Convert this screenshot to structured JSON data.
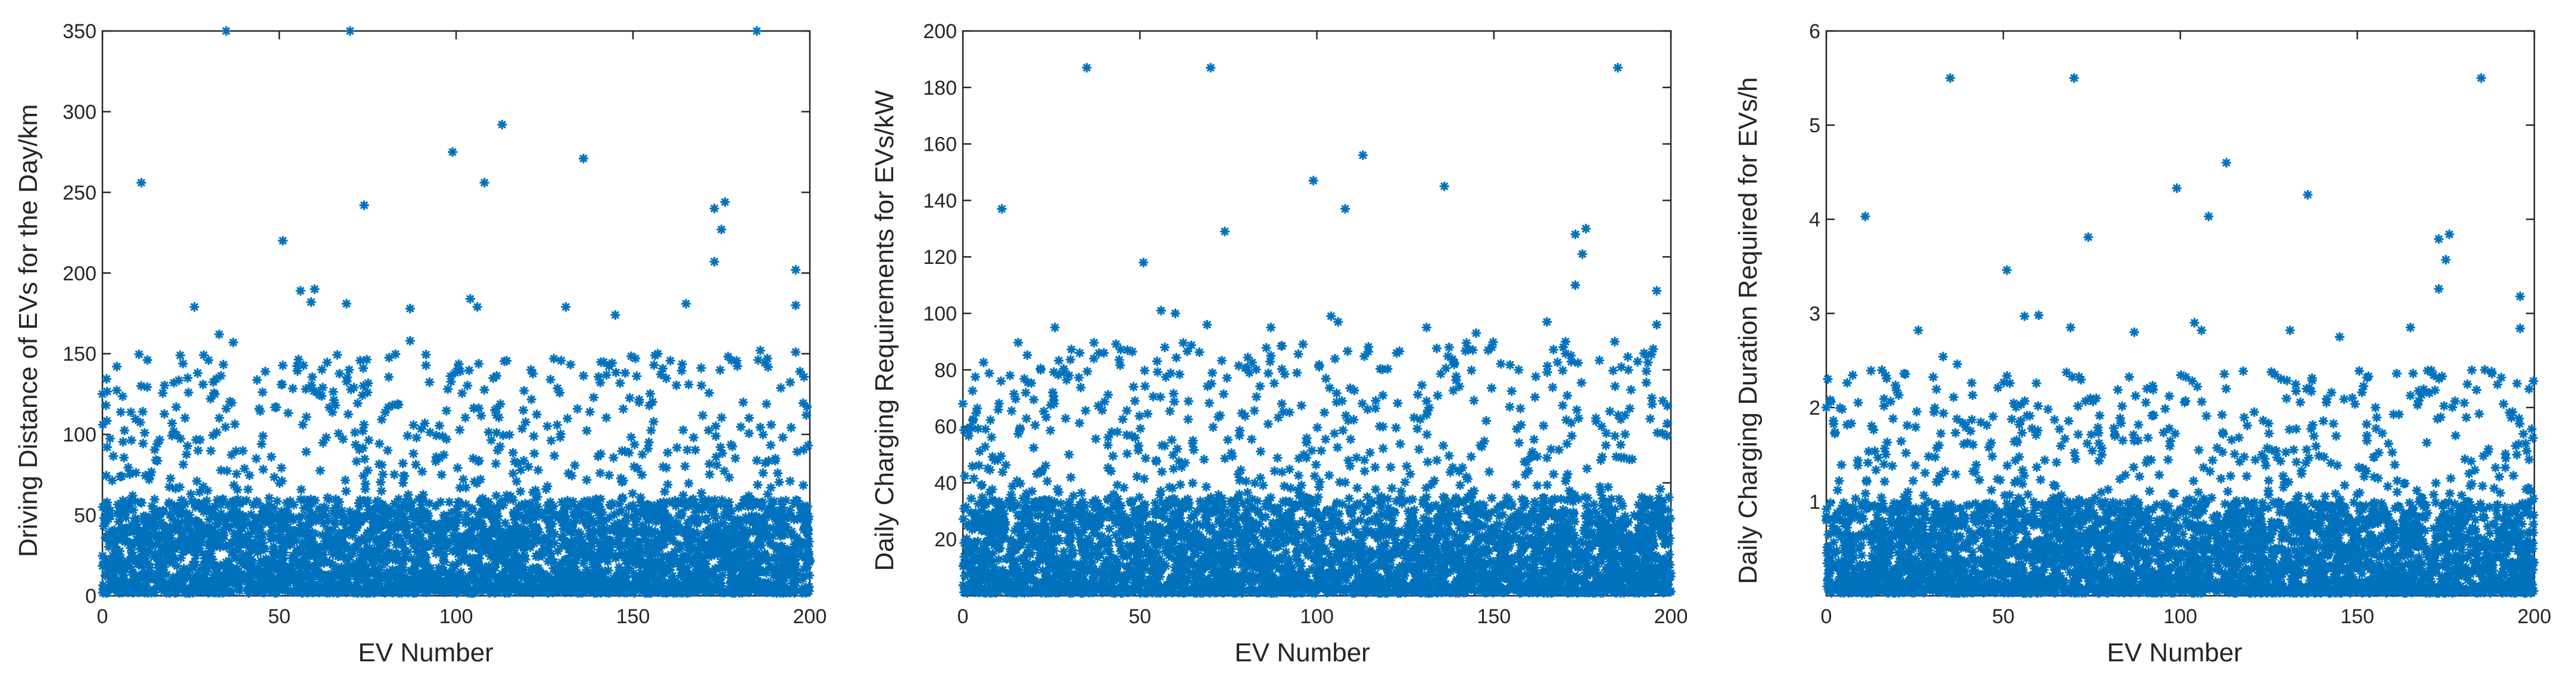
{
  "marker_color": "#0072BD",
  "chart_data": [
    {
      "type": "scatter",
      "marker": "asterisk",
      "xlabel": "EV Number",
      "ylabel": "Driving Distance of EVs for the Day/km",
      "xlim": [
        0,
        200
      ],
      "ylim": [
        0,
        350
      ],
      "xticks": [
        0,
        50,
        100,
        150,
        200
      ],
      "yticks": [
        0,
        50,
        100,
        150,
        200,
        250,
        300,
        350
      ],
      "x_tick_labels": [
        "0",
        "50",
        "100",
        "150",
        "200"
      ],
      "y_tick_labels": [
        "0",
        "50",
        "100",
        "150",
        "200",
        "250",
        "300",
        "350"
      ],
      "grid": false,
      "highlight_points": [
        {
          "x": 11,
          "y": 256
        },
        {
          "x": 35,
          "y": 350
        },
        {
          "x": 70,
          "y": 350
        },
        {
          "x": 74,
          "y": 242
        },
        {
          "x": 99,
          "y": 275
        },
        {
          "x": 108,
          "y": 256
        },
        {
          "x": 113,
          "y": 292
        },
        {
          "x": 136,
          "y": 271
        },
        {
          "x": 185,
          "y": 350
        },
        {
          "x": 173,
          "y": 240
        },
        {
          "x": 176,
          "y": 244
        },
        {
          "x": 175,
          "y": 227
        },
        {
          "x": 173,
          "y": 207
        },
        {
          "x": 196,
          "y": 202
        },
        {
          "x": 51,
          "y": 220
        },
        {
          "x": 56,
          "y": 189
        },
        {
          "x": 60,
          "y": 190
        },
        {
          "x": 69,
          "y": 181
        },
        {
          "x": 104,
          "y": 184
        },
        {
          "x": 106,
          "y": 179
        },
        {
          "x": 26,
          "y": 179
        },
        {
          "x": 33,
          "y": 162
        },
        {
          "x": 37,
          "y": 157
        },
        {
          "x": 30,
          "y": 146
        },
        {
          "x": 22,
          "y": 149
        },
        {
          "x": 145,
          "y": 174
        },
        {
          "x": 131,
          "y": 179
        },
        {
          "x": 196,
          "y": 180
        },
        {
          "x": 186,
          "y": 152
        },
        {
          "x": 188,
          "y": 147
        },
        {
          "x": 196,
          "y": 151
        },
        {
          "x": 87,
          "y": 178
        },
        {
          "x": 82,
          "y": 118
        },
        {
          "x": 165,
          "y": 181
        },
        {
          "x": 157,
          "y": 150
        },
        {
          "x": 0,
          "y": 125
        },
        {
          "x": 1,
          "y": 118
        },
        {
          "x": 199,
          "y": 112
        },
        {
          "x": 59,
          "y": 182
        },
        {
          "x": 87,
          "y": 158
        }
      ],
      "bulk_distribution": {
        "count": 4000,
        "x_range": [
          0,
          200
        ],
        "y_mostly_below": 60,
        "y_tail_to": 150
      }
    },
    {
      "type": "scatter",
      "marker": "asterisk",
      "xlabel": "EV Number",
      "ylabel": "Daily Charging Requirements for EVs/kW",
      "xlim": [
        0,
        200
      ],
      "ylim": [
        0,
        200
      ],
      "xticks": [
        0,
        50,
        100,
        150,
        200
      ],
      "yticks": [
        20,
        40,
        60,
        80,
        100,
        120,
        140,
        160,
        180,
        200
      ],
      "x_tick_labels": [
        "0",
        "50",
        "100",
        "150",
        "200"
      ],
      "y_tick_labels": [
        "20",
        "40",
        "60",
        "80",
        "100",
        "120",
        "140",
        "160",
        "180",
        "200"
      ],
      "grid": false,
      "highlight_points": [
        {
          "x": 35,
          "y": 187
        },
        {
          "x": 70,
          "y": 187
        },
        {
          "x": 185,
          "y": 187
        },
        {
          "x": 11,
          "y": 137
        },
        {
          "x": 99,
          "y": 147
        },
        {
          "x": 113,
          "y": 156
        },
        {
          "x": 136,
          "y": 145
        },
        {
          "x": 108,
          "y": 137
        },
        {
          "x": 74,
          "y": 129
        },
        {
          "x": 173,
          "y": 128
        },
        {
          "x": 176,
          "y": 130
        },
        {
          "x": 175,
          "y": 121
        },
        {
          "x": 51,
          "y": 118
        },
        {
          "x": 173,
          "y": 110
        },
        {
          "x": 196,
          "y": 108
        },
        {
          "x": 56,
          "y": 101
        },
        {
          "x": 60,
          "y": 100
        },
        {
          "x": 104,
          "y": 99
        },
        {
          "x": 106,
          "y": 97
        },
        {
          "x": 69,
          "y": 96
        },
        {
          "x": 196,
          "y": 96
        },
        {
          "x": 26,
          "y": 95
        },
        {
          "x": 87,
          "y": 95
        },
        {
          "x": 131,
          "y": 95
        },
        {
          "x": 165,
          "y": 97
        },
        {
          "x": 145,
          "y": 93
        },
        {
          "x": 33,
          "y": 86
        },
        {
          "x": 37,
          "y": 84
        },
        {
          "x": 188,
          "y": 80
        },
        {
          "x": 186,
          "y": 81
        },
        {
          "x": 22,
          "y": 80
        },
        {
          "x": 30,
          "y": 78
        },
        {
          "x": 157,
          "y": 80
        },
        {
          "x": 0,
          "y": 68
        },
        {
          "x": 199,
          "y": 61
        },
        {
          "x": 87,
          "y": 85
        }
      ],
      "bulk_distribution": {
        "count": 4000,
        "x_range": [
          0,
          200
        ],
        "y_mostly_below": 35,
        "y_tail_to": 90
      }
    },
    {
      "type": "scatter",
      "marker": "asterisk",
      "xlabel": "EV Number",
      "ylabel": "Daily Charging Duration Required for EVs/h",
      "xlim": [
        0,
        200
      ],
      "ylim": [
        0,
        6
      ],
      "xticks": [
        0,
        50,
        100,
        150,
        200
      ],
      "yticks": [
        1,
        2,
        3,
        4,
        5,
        6
      ],
      "x_tick_labels": [
        "0",
        "50",
        "100",
        "150",
        "200"
      ],
      "y_tick_labels": [
        "1",
        "2",
        "3",
        "4",
        "5",
        "6"
      ],
      "grid": false,
      "highlight_points": [
        {
          "x": 35,
          "y": 5.5
        },
        {
          "x": 70,
          "y": 5.5
        },
        {
          "x": 185,
          "y": 5.5
        },
        {
          "x": 113,
          "y": 4.6
        },
        {
          "x": 99,
          "y": 4.33
        },
        {
          "x": 136,
          "y": 4.26
        },
        {
          "x": 11,
          "y": 4.03
        },
        {
          "x": 108,
          "y": 4.03
        },
        {
          "x": 176,
          "y": 3.84
        },
        {
          "x": 74,
          "y": 3.81
        },
        {
          "x": 173,
          "y": 3.79
        },
        {
          "x": 175,
          "y": 3.57
        },
        {
          "x": 51,
          "y": 3.46
        },
        {
          "x": 173,
          "y": 3.26
        },
        {
          "x": 196,
          "y": 3.18
        },
        {
          "x": 56,
          "y": 2.97
        },
        {
          "x": 60,
          "y": 2.98
        },
        {
          "x": 104,
          "y": 2.9
        },
        {
          "x": 106,
          "y": 2.82
        },
        {
          "x": 69,
          "y": 2.85
        },
        {
          "x": 26,
          "y": 2.82
        },
        {
          "x": 87,
          "y": 2.8
        },
        {
          "x": 131,
          "y": 2.82
        },
        {
          "x": 165,
          "y": 2.85
        },
        {
          "x": 196,
          "y": 2.84
        },
        {
          "x": 145,
          "y": 2.75
        },
        {
          "x": 33,
          "y": 2.54
        },
        {
          "x": 37,
          "y": 2.46
        },
        {
          "x": 188,
          "y": 2.36
        },
        {
          "x": 186,
          "y": 2.4
        },
        {
          "x": 22,
          "y": 2.36
        },
        {
          "x": 0,
          "y": 2.0
        }
      ],
      "bulk_distribution": {
        "count": 4000,
        "x_range": [
          0,
          200
        ],
        "y_mostly_below": 1.0,
        "y_tail_to": 2.4
      }
    }
  ]
}
